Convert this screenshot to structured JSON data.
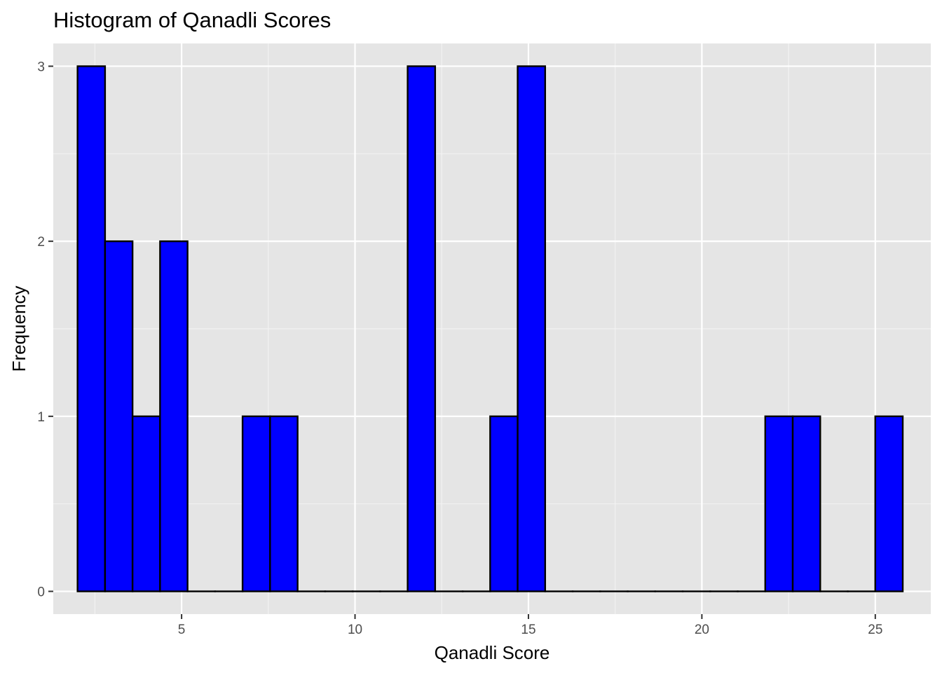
{
  "chart_data": {
    "type": "bar",
    "subtype": "histogram",
    "title": "Histogram of Qanadli Scores",
    "xlabel": "Qanadli Score",
    "ylabel": "Frequency",
    "xlim": [
      1.3,
      26.6
    ],
    "ylim": [
      -0.13,
      3.13
    ],
    "x_ticks": [
      5,
      10,
      15,
      20,
      25
    ],
    "y_ticks": [
      0,
      1,
      2,
      3
    ],
    "bin_width": 0.793,
    "bins": [
      {
        "x_start": 2.0,
        "x_end": 2.793,
        "count": 3
      },
      {
        "x_start": 2.793,
        "x_end": 3.586,
        "count": 2
      },
      {
        "x_start": 3.586,
        "x_end": 4.379,
        "count": 1
      },
      {
        "x_start": 4.379,
        "x_end": 5.172,
        "count": 2
      },
      {
        "x_start": 5.172,
        "x_end": 5.965,
        "count": 0
      },
      {
        "x_start": 5.965,
        "x_end": 6.758,
        "count": 0
      },
      {
        "x_start": 6.758,
        "x_end": 7.551,
        "count": 1
      },
      {
        "x_start": 7.551,
        "x_end": 8.345,
        "count": 1
      },
      {
        "x_start": 8.345,
        "x_end": 9.138,
        "count": 0
      },
      {
        "x_start": 9.138,
        "x_end": 9.931,
        "count": 0
      },
      {
        "x_start": 9.931,
        "x_end": 10.724,
        "count": 0
      },
      {
        "x_start": 10.724,
        "x_end": 11.517,
        "count": 0
      },
      {
        "x_start": 11.517,
        "x_end": 12.31,
        "count": 3
      },
      {
        "x_start": 12.31,
        "x_end": 13.103,
        "count": 0
      },
      {
        "x_start": 13.103,
        "x_end": 13.896,
        "count": 0
      },
      {
        "x_start": 13.896,
        "x_end": 14.689,
        "count": 1
      },
      {
        "x_start": 14.689,
        "x_end": 15.482,
        "count": 3
      },
      {
        "x_start": 15.482,
        "x_end": 16.275,
        "count": 0
      },
      {
        "x_start": 16.275,
        "x_end": 17.068,
        "count": 0
      },
      {
        "x_start": 17.068,
        "x_end": 17.861,
        "count": 0
      },
      {
        "x_start": 17.861,
        "x_end": 18.655,
        "count": 0
      },
      {
        "x_start": 18.655,
        "x_end": 19.448,
        "count": 0
      },
      {
        "x_start": 19.448,
        "x_end": 20.241,
        "count": 0
      },
      {
        "x_start": 20.241,
        "x_end": 21.034,
        "count": 0
      },
      {
        "x_start": 21.034,
        "x_end": 21.827,
        "count": 0
      },
      {
        "x_start": 21.827,
        "x_end": 22.62,
        "count": 1
      },
      {
        "x_start": 22.62,
        "x_end": 23.413,
        "count": 1
      },
      {
        "x_start": 23.413,
        "x_end": 24.206,
        "count": 0
      },
      {
        "x_start": 24.206,
        "x_end": 24.999,
        "count": 0
      },
      {
        "x_start": 24.999,
        "x_end": 25.792,
        "count": 1
      }
    ],
    "grid": true,
    "legend": "none",
    "colors": {
      "bar_fill": "#0000ff",
      "bar_outline": "#000000",
      "panel_background": "#e5e5e5",
      "grid_major": "#ffffff",
      "grid_minor": "#f2f2f2",
      "tick_label": "#4d4d4d"
    }
  }
}
